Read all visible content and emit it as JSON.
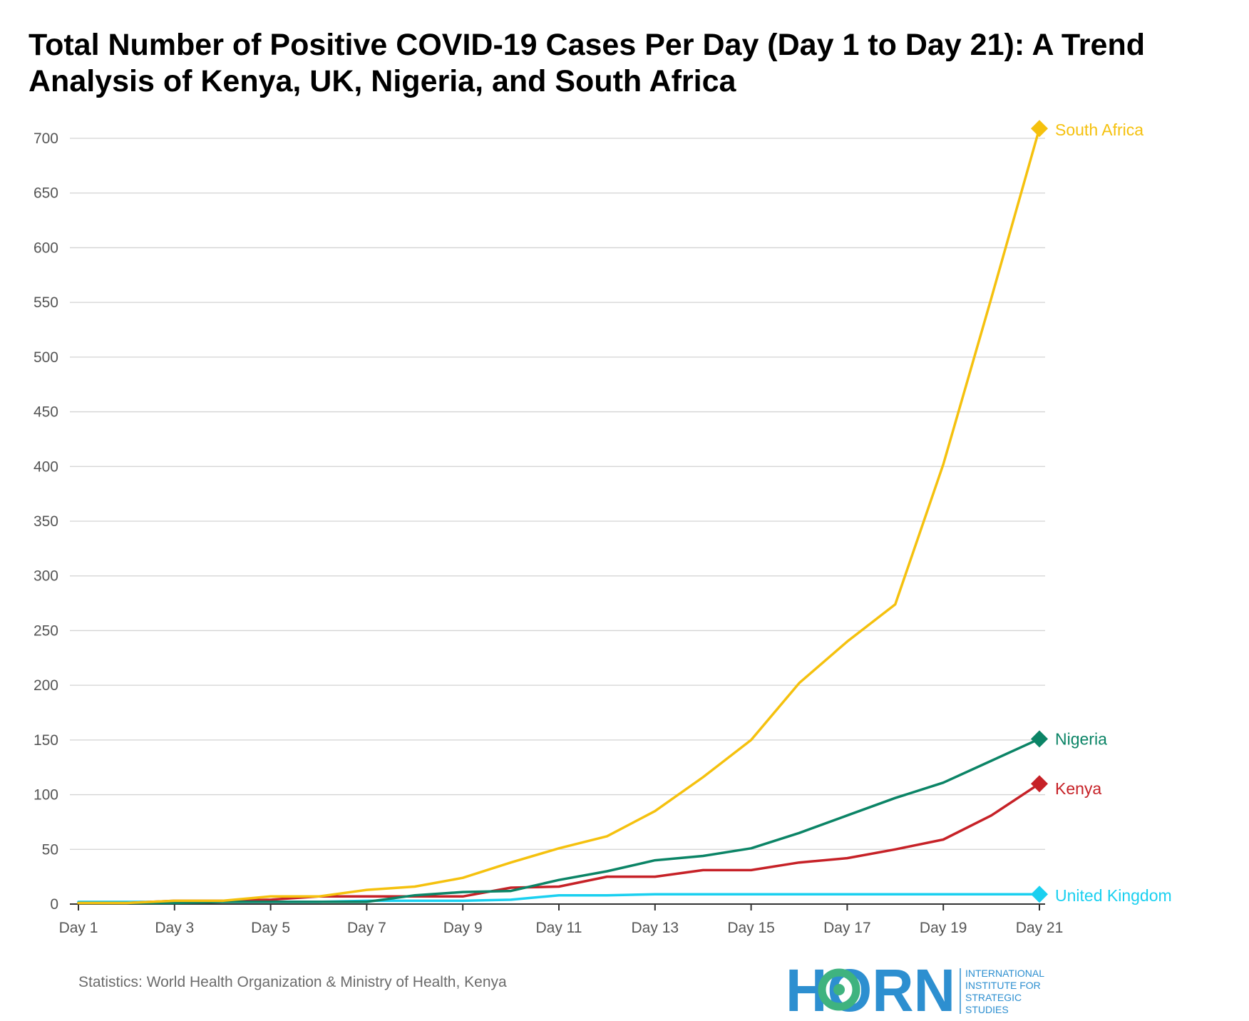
{
  "chart_data": {
    "type": "line",
    "title": "Total Number of Positive COVID-19 Cases Per Day (Day 1 to Day 21): A Trend Analysis of Kenya, UK, Nigeria, and South Africa",
    "xlabel": "",
    "ylabel": "",
    "x": [
      "Day 1",
      "Day 2",
      "Day 3",
      "Day 4",
      "Day 5",
      "Day 6",
      "Day 7",
      "Day 8",
      "Day 9",
      "Day 10",
      "Day 11",
      "Day 12",
      "Day 13",
      "Day 14",
      "Day 15",
      "Day 16",
      "Day 17",
      "Day 18",
      "Day 19",
      "Day 20",
      "Day 21"
    ],
    "x_tick_labels": [
      "Day 1",
      "Day 3",
      "Day 5",
      "Day 7",
      "Day 9",
      "Day 11",
      "Day 13",
      "Day 15",
      "Day 17",
      "Day 19",
      "Day 21"
    ],
    "ylim": [
      0,
      700
    ],
    "y_ticks": [
      0,
      50,
      100,
      150,
      200,
      250,
      300,
      350,
      400,
      450,
      500,
      550,
      600,
      650,
      700
    ],
    "grid": true,
    "legend": "direct labels at line ends",
    "series": [
      {
        "name": "South Africa",
        "color": "#f5c10e",
        "values": [
          1,
          1,
          3,
          3,
          7,
          7,
          13,
          16,
          24,
          38,
          51,
          62,
          85,
          116,
          150,
          202,
          240,
          274,
          402,
          554,
          709
        ]
      },
      {
        "name": "Nigeria",
        "color": "#0b8466",
        "values": [
          1,
          1,
          1,
          2,
          2,
          2,
          2,
          8,
          11,
          12,
          22,
          30,
          40,
          44,
          51,
          65,
          81,
          97,
          111,
          131,
          151
        ]
      },
      {
        "name": "Kenya",
        "color": "#c62127",
        "values": [
          1,
          1,
          3,
          3,
          4,
          7,
          7,
          7,
          7,
          15,
          16,
          25,
          25,
          31,
          31,
          38,
          42,
          50,
          59,
          81,
          110
        ]
      },
      {
        "name": "United Kingdom",
        "color": "#1ad0f0",
        "values": [
          2,
          2,
          2,
          2,
          2,
          2,
          3,
          3,
          3,
          4,
          8,
          8,
          9,
          9,
          9,
          9,
          9,
          9,
          9,
          9,
          9
        ]
      }
    ]
  },
  "footer": {
    "source": "Statistics: World Health Organization & Ministry of Health, Kenya"
  },
  "logo": {
    "wordmark": "HORN",
    "tagline_lines": [
      "INTERNATIONAL",
      "INSTITUTE FOR",
      "STRATEGIC",
      "STUDIES"
    ],
    "color_blue": "#2d8fd0",
    "color_green": "#3fb37f"
  }
}
